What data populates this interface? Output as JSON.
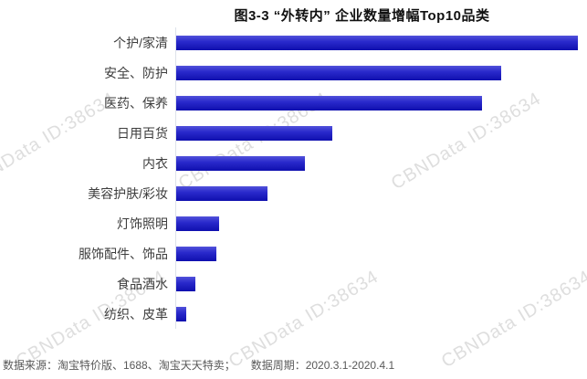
{
  "chart_data": {
    "type": "bar",
    "orientation": "horizontal",
    "title": "图3-3 “外转内” 企业数量增幅Top10品类",
    "categories": [
      "个护/家清",
      "安全、防护",
      "医药、保养",
      "日用百货",
      "内衣",
      "美容护肤/彩妆",
      "灯饰照明",
      "服饰配件、饰品",
      "食品酒水",
      "纺织、皮革"
    ],
    "values": [
      440,
      356,
      335,
      171,
      141,
      100,
      47,
      44,
      21,
      11
    ],
    "value_note": "no numeric axis or data labels shown in chart; values are relative bar lengths in screen pixels",
    "xlabel": "",
    "ylabel": "",
    "grid": false,
    "legend": false,
    "bar_color_top": "#5252da",
    "bar_color_bottom": "#0f0fae",
    "axis_line_color": "#dde2ea"
  },
  "footer": {
    "source": "数据来源：淘宝特价版、1688、淘宝天天特卖；",
    "period": "数据周期：2020.3.1-2020.4.1"
  },
  "watermark": {
    "text": "CBNData ID:38634",
    "color": "#dedede"
  }
}
